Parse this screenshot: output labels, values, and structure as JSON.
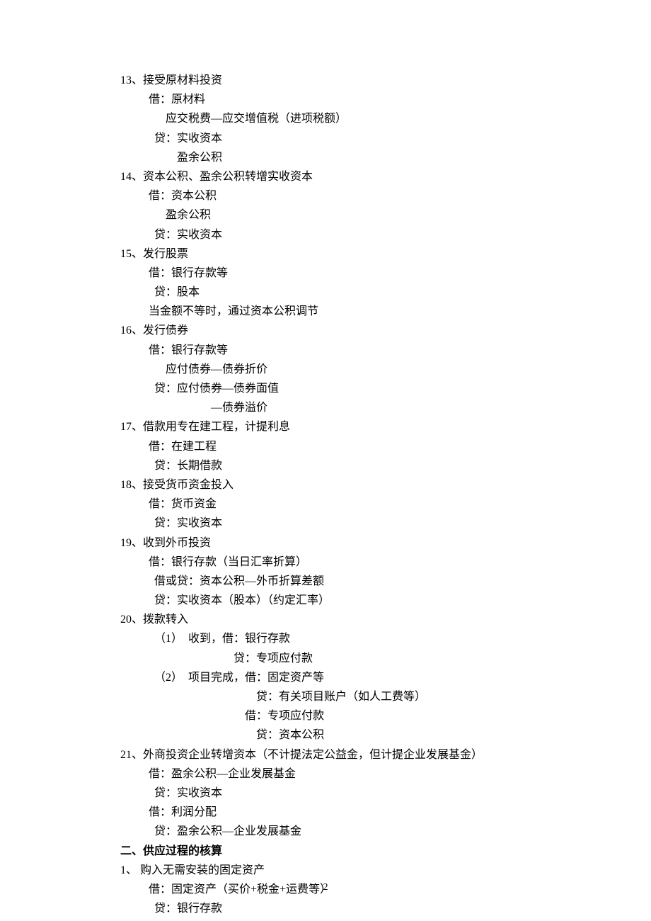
{
  "lines": [
    {
      "text": "13、接受原材料投资",
      "indent": "indent-1"
    },
    {
      "text": "借：原材料",
      "indent": "indent-2"
    },
    {
      "text": "应交税费—应交增值税（进项税额）",
      "indent": "indent-3"
    },
    {
      "text": "贷：实收资本",
      "indent": "indent-4"
    },
    {
      "text": "盈余公积",
      "indent": "indent-5"
    },
    {
      "text": "14、资本公积、盈余公积转增实收资本",
      "indent": "indent-1"
    },
    {
      "text": "借：资本公积",
      "indent": "indent-2"
    },
    {
      "text": "盈余公积",
      "indent": "indent-3"
    },
    {
      "text": "贷：实收资本",
      "indent": "indent-4"
    },
    {
      "text": "15、发行股票",
      "indent": "indent-1"
    },
    {
      "text": "借：银行存款等",
      "indent": "indent-2"
    },
    {
      "text": "贷：股本",
      "indent": "indent-4"
    },
    {
      "text": "当金额不等时，通过资本公积调节",
      "indent": "indent-2"
    },
    {
      "text": "16、发行债券",
      "indent": "indent-1"
    },
    {
      "text": "借：银行存款等",
      "indent": "indent-2"
    },
    {
      "text": "应付债券—债券折价",
      "indent": "indent-3"
    },
    {
      "text": "贷：应付债券—债券面值",
      "indent": "indent-4"
    },
    {
      "text": "—债券溢价",
      "indent": "indent-7"
    },
    {
      "text": "17、借款用专在建工程，计提利息",
      "indent": "indent-1"
    },
    {
      "text": "借：在建工程",
      "indent": "indent-2"
    },
    {
      "text": "贷：长期借款",
      "indent": "indent-4"
    },
    {
      "text": "18、接受货币资金投入",
      "indent": "indent-1"
    },
    {
      "text": "借：货币资金",
      "indent": "indent-2"
    },
    {
      "text": "贷：实收资本",
      "indent": "indent-4"
    },
    {
      "text": "19、收到外币投资",
      "indent": "indent-1"
    },
    {
      "text": "借：银行存款（当日汇率折算）",
      "indent": "indent-2"
    },
    {
      "text": "借或贷：资本公积—外币折算差额",
      "indent": "indent-4"
    },
    {
      "text": "贷：实收资本（股本）（约定汇率）",
      "indent": "indent-4"
    },
    {
      "text": "20、拨款转入",
      "indent": "indent-1"
    },
    {
      "text": "（1）  收到，借：银行存款",
      "indent": "indent-item2"
    },
    {
      "text": "贷：专项应付款",
      "indent": "indent-6"
    },
    {
      "text": "（2）  项目完成，借：固定资产等",
      "indent": "indent-item2"
    },
    {
      "text": "贷：有关项目账户（如人工费等）",
      "indent": "indent-9"
    },
    {
      "text": "借：专项应付款",
      "indent": "indent-8"
    },
    {
      "text": "贷：资本公积",
      "indent": "indent-9"
    },
    {
      "text": "21、外商投资企业转增资本（不计提法定公益金，但计提企业发展基金）",
      "indent": "indent-1"
    },
    {
      "text": "借：盈余公积—企业发展基金",
      "indent": "indent-2"
    },
    {
      "text": "贷：实收资本",
      "indent": "indent-4"
    },
    {
      "text": "借：利润分配",
      "indent": "indent-2"
    },
    {
      "text": "贷：盈余公积—企业发展基金",
      "indent": "indent-4"
    },
    {
      "text": "二、供应过程的核算",
      "indent": "indent-1",
      "bold": true
    },
    {
      "text": "1、 购入无需安装的固定资产",
      "indent": "indent-1"
    },
    {
      "text": "借：固定资产（买价+税金+运费等）",
      "indent": "indent-2"
    },
    {
      "text": "贷：银行存款",
      "indent": "indent-4"
    }
  ],
  "pageNumber": "2"
}
